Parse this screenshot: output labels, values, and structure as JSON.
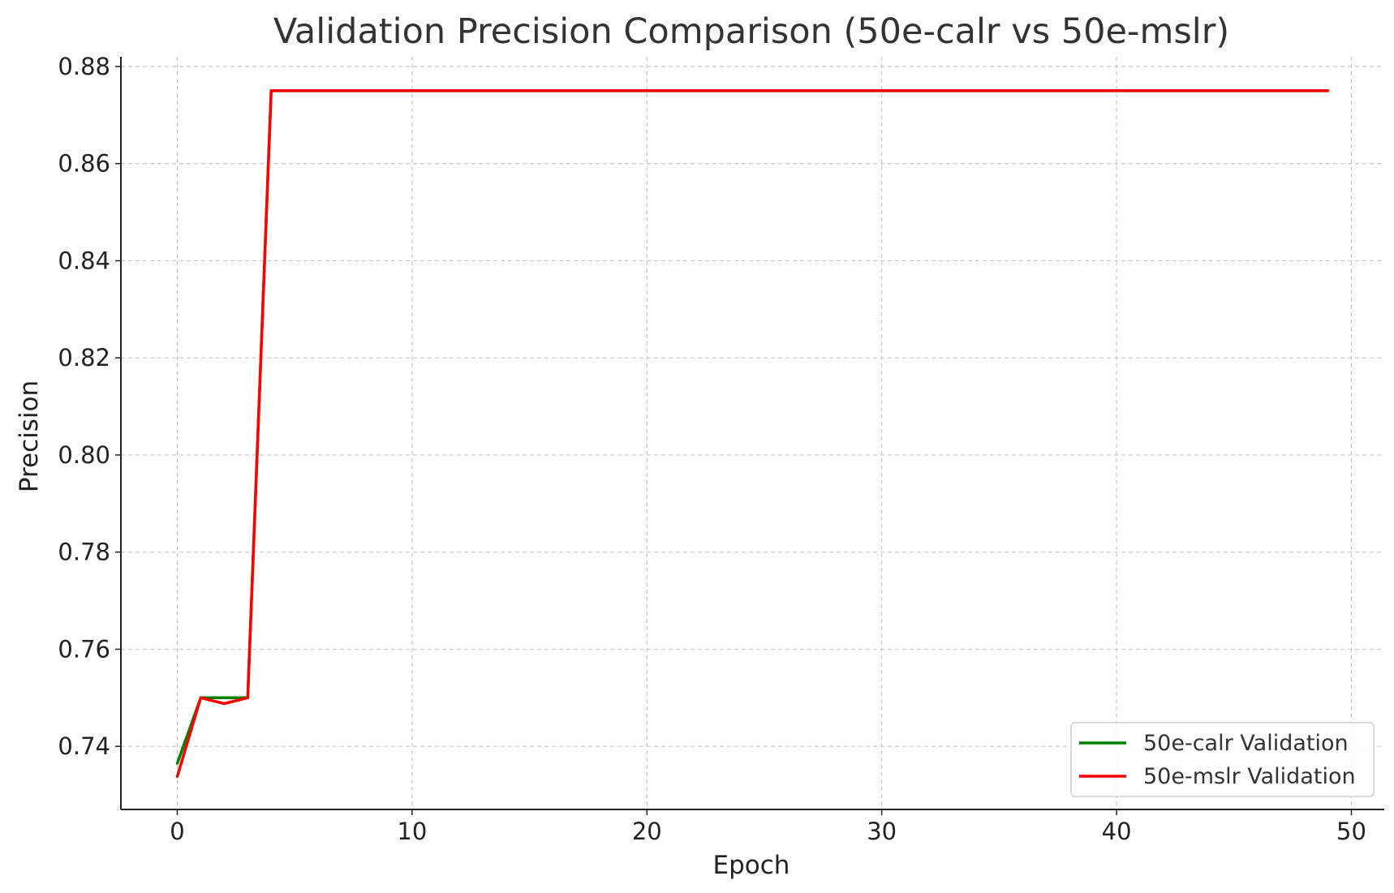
{
  "chart_data": {
    "type": "line",
    "title": "Validation Precision Comparison (50e-calr vs 50e-mslr)",
    "xlabel": "Epoch",
    "ylabel": "Precision",
    "xlim": [
      -2.4,
      51.4
    ],
    "ylim": [
      0.727,
      0.882
    ],
    "x_ticks": [
      0,
      10,
      20,
      30,
      40,
      50
    ],
    "x_tick_labels": [
      "0",
      "10",
      "20",
      "30",
      "40",
      "50"
    ],
    "y_ticks": [
      0.74,
      0.76,
      0.78,
      0.8,
      0.82,
      0.84,
      0.86,
      0.88
    ],
    "y_tick_labels": [
      "0.74",
      "0.76",
      "0.78",
      "0.80",
      "0.82",
      "0.84",
      "0.86",
      "0.88"
    ],
    "grid": true,
    "legend_position": "bottom-right",
    "series": [
      {
        "name": "50e-calr Validation",
        "color": "#008000",
        "points": [
          [
            0,
            0.7365
          ],
          [
            1,
            0.75
          ],
          [
            2,
            0.75
          ],
          [
            3,
            0.75
          ],
          [
            4,
            0.875
          ],
          [
            5,
            0.875
          ],
          [
            6,
            0.875
          ],
          [
            7,
            0.875
          ],
          [
            8,
            0.875
          ],
          [
            9,
            0.875
          ],
          [
            10,
            0.875
          ],
          [
            11,
            0.875
          ],
          [
            12,
            0.875
          ],
          [
            13,
            0.875
          ],
          [
            14,
            0.875
          ],
          [
            15,
            0.875
          ],
          [
            16,
            0.875
          ],
          [
            17,
            0.875
          ],
          [
            18,
            0.875
          ],
          [
            19,
            0.875
          ],
          [
            20,
            0.875
          ],
          [
            21,
            0.875
          ],
          [
            22,
            0.875
          ],
          [
            23,
            0.875
          ],
          [
            24,
            0.875
          ],
          [
            25,
            0.875
          ],
          [
            26,
            0.875
          ],
          [
            27,
            0.875
          ],
          [
            28,
            0.875
          ],
          [
            29,
            0.875
          ],
          [
            30,
            0.875
          ],
          [
            31,
            0.875
          ],
          [
            32,
            0.875
          ],
          [
            33,
            0.875
          ],
          [
            34,
            0.875
          ],
          [
            35,
            0.875
          ],
          [
            36,
            0.875
          ],
          [
            37,
            0.875
          ],
          [
            38,
            0.875
          ],
          [
            39,
            0.875
          ],
          [
            40,
            0.875
          ],
          [
            41,
            0.875
          ],
          [
            42,
            0.875
          ],
          [
            43,
            0.875
          ],
          [
            44,
            0.875
          ],
          [
            45,
            0.875
          ],
          [
            46,
            0.875
          ],
          [
            47,
            0.875
          ],
          [
            48,
            0.875
          ],
          [
            49,
            0.875
          ]
        ]
      },
      {
        "name": "50e-mslr Validation",
        "color": "#ff0000",
        "points": [
          [
            0,
            0.7338
          ],
          [
            1,
            0.75
          ],
          [
            2,
            0.7488
          ],
          [
            3,
            0.75
          ],
          [
            4,
            0.875
          ],
          [
            5,
            0.875
          ],
          [
            6,
            0.875
          ],
          [
            7,
            0.875
          ],
          [
            8,
            0.875
          ],
          [
            9,
            0.875
          ],
          [
            10,
            0.875
          ],
          [
            11,
            0.875
          ],
          [
            12,
            0.875
          ],
          [
            13,
            0.875
          ],
          [
            14,
            0.875
          ],
          [
            15,
            0.875
          ],
          [
            16,
            0.875
          ],
          [
            17,
            0.875
          ],
          [
            18,
            0.875
          ],
          [
            19,
            0.875
          ],
          [
            20,
            0.875
          ],
          [
            21,
            0.875
          ],
          [
            22,
            0.875
          ],
          [
            23,
            0.875
          ],
          [
            24,
            0.875
          ],
          [
            25,
            0.875
          ],
          [
            26,
            0.875
          ],
          [
            27,
            0.875
          ],
          [
            28,
            0.875
          ],
          [
            29,
            0.875
          ],
          [
            30,
            0.875
          ],
          [
            31,
            0.875
          ],
          [
            32,
            0.875
          ],
          [
            33,
            0.875
          ],
          [
            34,
            0.875
          ],
          [
            35,
            0.875
          ],
          [
            36,
            0.875
          ],
          [
            37,
            0.875
          ],
          [
            38,
            0.875
          ],
          [
            39,
            0.875
          ],
          [
            40,
            0.875
          ],
          [
            41,
            0.875
          ],
          [
            42,
            0.875
          ],
          [
            43,
            0.875
          ],
          [
            44,
            0.875
          ],
          [
            45,
            0.875
          ],
          [
            46,
            0.875
          ],
          [
            47,
            0.875
          ],
          [
            48,
            0.875
          ],
          [
            49,
            0.875
          ]
        ]
      }
    ]
  }
}
